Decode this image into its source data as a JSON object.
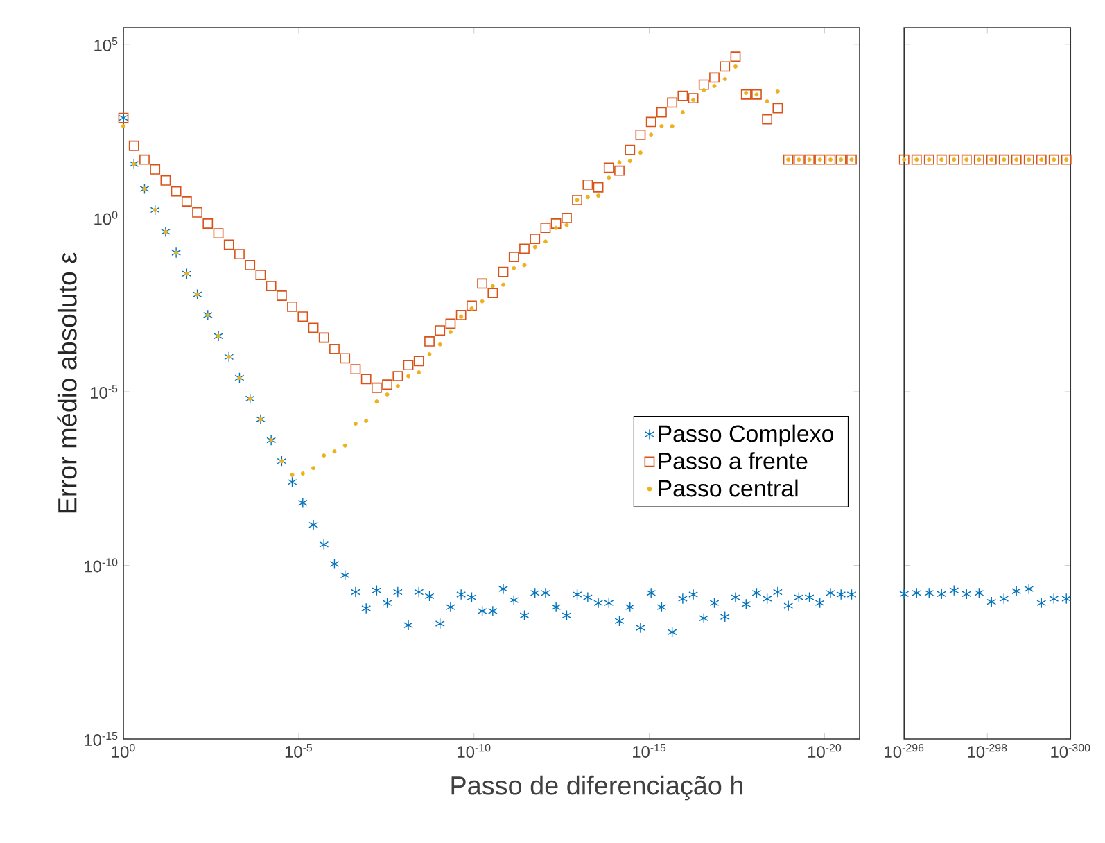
{
  "chart_data": [
    {
      "type": "scatter",
      "xlabel": "Passo de diferenciação h",
      "ylabel": "Error médio absoluto ε",
      "log": "xy",
      "xlim": [
        1,
        1e-21
      ],
      "ylim": [
        1e-15,
        300000.0
      ],
      "xticks": [
        {
          "value": 1,
          "label": "10$^{0}$"
        },
        {
          "value": 1e-05,
          "label": "10$^{-5}$"
        },
        {
          "value": 1e-10,
          "label": "10$^{-10}$"
        },
        {
          "value": 1e-15,
          "label": "10$^{-15}$"
        },
        {
          "value": 1e-20,
          "label": "10$^{-20}$"
        }
      ],
      "yticks": [
        {
          "value": 1e-15,
          "label": "10$^{-15}$"
        },
        {
          "value": 1e-10,
          "label": "10$^{-10}$"
        },
        {
          "value": 1e-05,
          "label": "10$^{-5}$"
        },
        {
          "value": 1,
          "label": "10$^{0}$"
        },
        {
          "value": 100000.0,
          "label": "10$^{5}$"
        }
      ],
      "legend": "right",
      "x": [
        1,
        0.5,
        0.25,
        0.125,
        0.0625,
        0.03125,
        0.015625,
        0.00781,
        0.00391,
        0.00195,
        0.000977,
        0.000488,
        0.000244,
        0.000122,
        6.1e-05,
        3.05e-05,
        1.53e-05,
        7.63e-06,
        3.81e-06,
        1.91e-06,
        9.54e-07,
        4.77e-07,
        2.38e-07,
        1.19e-07,
        5.96e-08,
        2.98e-08,
        1.49e-08,
        7.45e-09,
        3.73e-09,
        1.86e-09,
        9.31e-10,
        4.66e-10,
        2.33e-10,
        1.16e-10,
        5.82e-11,
        2.91e-11,
        1.46e-11,
        7.28e-12,
        3.64e-12,
        1.82e-12,
        9.09e-13,
        4.55e-13,
        2.27e-13,
        1.14e-13,
        5.68e-14,
        2.84e-14,
        1.42e-14,
        7.11e-15,
        3.55e-15,
        1.78e-15,
        8.88e-16,
        4.44e-16,
        2.22e-16,
        1.11e-16,
        5.55e-17,
        2.78e-17,
        1.39e-17,
        6.94e-18,
        3.47e-18,
        1.73e-18,
        8.67e-19,
        4.34e-19,
        2.17e-19,
        1.08e-19,
        5.42e-20,
        2.71e-20,
        1.36e-20,
        6.78e-21,
        3.39e-21,
        1.69e-21
      ],
      "series": [
        {
          "name": "Passo Complexo",
          "color": "#0072bd",
          "marker": "cross",
          "values": [
            760.0,
            36.0,
            6.9,
            1.7,
            0.4,
            0.1,
            0.025,
            0.0063,
            0.0016,
            0.0004,
            0.0001,
            2.5e-05,
            6.3e-06,
            1.6e-06,
            4e-07,
            1e-07,
            2.5e-08,
            6.3e-09,
            1.45e-09,
            4e-10,
            1.1e-10,
            5.2e-11,
            1.7e-11,
            5.8e-12,
            1.9e-11,
            8.3e-12,
            1.7e-11,
            1.9e-12,
            1.7e-11,
            1.3e-11,
            2.1e-12,
            6.3e-12,
            1.45e-11,
            1.2e-11,
            4.8e-12,
            4.8e-12,
            2.1e-11,
            1e-11,
            3.6e-12,
            1.6e-11,
            1.6e-11,
            6.3e-12,
            3.6e-12,
            1.45e-11,
            1.2e-11,
            8.3e-12,
            8.3e-12,
            2.5e-12,
            6.3e-12,
            1.6e-12,
            1.6e-11,
            6.3e-12,
            1.2e-12,
            1.1e-11,
            1.45e-11,
            3e-12,
            8.3e-12,
            3.3e-12,
            1.2e-11,
            7.6e-12,
            1.6e-11,
            1.1e-11,
            1.7e-11,
            6.9e-12,
            1.2e-11,
            1.2e-11,
            8.3e-12,
            1.6e-11,
            1.45e-11,
            1.45e-11
          ]
        },
        {
          "name": "Passo a frente",
          "color": "#d95319",
          "marker": "square",
          "values": [
            760.0,
            120.0,
            48.0,
            25.0,
            12.0,
            5.8,
            3.0,
            1.45,
            0.69,
            0.36,
            0.17,
            0.091,
            0.044,
            0.023,
            0.011,
            0.0058,
            0.0028,
            0.00145,
            0.00069,
            0.00036,
            0.00017,
            9.1e-05,
            4.4e-05,
            2.3e-05,
            1.3e-05,
            1.6e-05,
            2.8e-05,
            5.8e-05,
            7.6e-05,
            0.00028,
            0.00058,
            0.00091,
            0.0016,
            0.003,
            0.013,
            0.0069,
            0.028,
            0.076,
            0.13,
            0.25,
            0.52,
            0.69,
            1,
            3.3,
            9.1,
            7.6,
            28.0,
            23.0,
            91.0,
            250.0,
            580.0,
            1100.0,
            2100.0,
            3300.0,
            2800.0,
            6900.0,
            11000.0,
            23000.0,
            44000.0,
            3600.0,
            3600.0,
            690.0,
            1450.0,
            48.0,
            48.0,
            48.0,
            48.0,
            48.0,
            48.0,
            48.0
          ]
        },
        {
          "name": "Passo central",
          "color": "#edb120",
          "marker": "circle",
          "values": [
            440.0,
            36.0,
            6.9,
            1.7,
            0.4,
            0.1,
            0.025,
            0.0063,
            0.0016,
            0.0004,
            0.0001,
            2.5e-05,
            6.3e-06,
            1.6e-06,
            4e-07,
            1e-07,
            4e-08,
            4.4e-08,
            6.3e-08,
            1.45e-07,
            1.9e-07,
            2.8e-07,
            1.2e-06,
            1.45e-06,
            5.2e-06,
            8.3e-06,
            1.45e-05,
            2.8e-05,
            3.6e-05,
            0.00012,
            0.00023,
            0.00052,
            0.00145,
            0.0025,
            0.004,
            0.011,
            0.012,
            0.036,
            0.044,
            0.145,
            0.21,
            0.52,
            0.63,
            3.3,
            4.0,
            4.4,
            14.5,
            40.0,
            44.0,
            76.0,
            250.0,
            440.0,
            440.0,
            1100.0,
            2500.0,
            4800.0,
            6300.0,
            10000.0,
            23000.0,
            4000.0,
            3600.0,
            2300.0,
            4400.0,
            48.0,
            48.0,
            48.0,
            48.0,
            48.0,
            48.0,
            48.0
          ]
        }
      ]
    },
    {
      "type": "scatter",
      "log": "xy",
      "xlim": [
        1e-296,
        1e-300
      ],
      "ylim": [
        1e-15,
        300000.0
      ],
      "tick_labels": "x",
      "xticks": [
        {
          "value": 1e-296,
          "label": "10$^{-296}$"
        },
        {
          "value": 1e-298,
          "label": "10$^{-298}$"
        },
        {
          "value": 1e-300,
          "label": "10$^{-300}$"
        }
      ],
      "yticks": [
        {
          "value": 1e-15,
          "label": null
        },
        {
          "value": 1e-10,
          "label": null
        },
        {
          "value": 1e-05,
          "label": null
        },
        {
          "value": 1,
          "label": null
        },
        {
          "value": 100000.0,
          "label": null
        }
      ],
      "x": [
        1e-296,
        5.01e-297,
        2.51e-297,
        1.26e-297,
        6.31e-298,
        3.16e-298,
        1.58e-298,
        7.94e-299,
        3.98e-299,
        2e-299,
        1e-299,
        5.01e-300,
        2.51e-300,
        1.26e-300
      ],
      "series": [
        {
          "color": "#0072bd",
          "marker": "cross",
          "values": [
            1.5e-11,
            1.6e-11,
            1.6e-11,
            1.5e-11,
            1.9e-11,
            1.5e-11,
            1.6e-11,
            8.9e-12,
            1.1e-11,
            1.8e-11,
            2.1e-11,
            8.3e-12,
            1.1e-11,
            1.1e-11
          ]
        },
        {
          "color": "#d95319",
          "marker": "square",
          "values": [
            48.0,
            48.0,
            48.0,
            48.0,
            48.0,
            48.0,
            48.0,
            48.0,
            48.0,
            48.0,
            48.0,
            48.0,
            48.0,
            48.0
          ]
        },
        {
          "color": "#edb120",
          "marker": "circle",
          "values": [
            48.0,
            48.0,
            48.0,
            48.0,
            48.0,
            48.0,
            48.0,
            48.0,
            48.0,
            48.0,
            48.0,
            48.0,
            48.0,
            48.0
          ]
        }
      ]
    }
  ]
}
